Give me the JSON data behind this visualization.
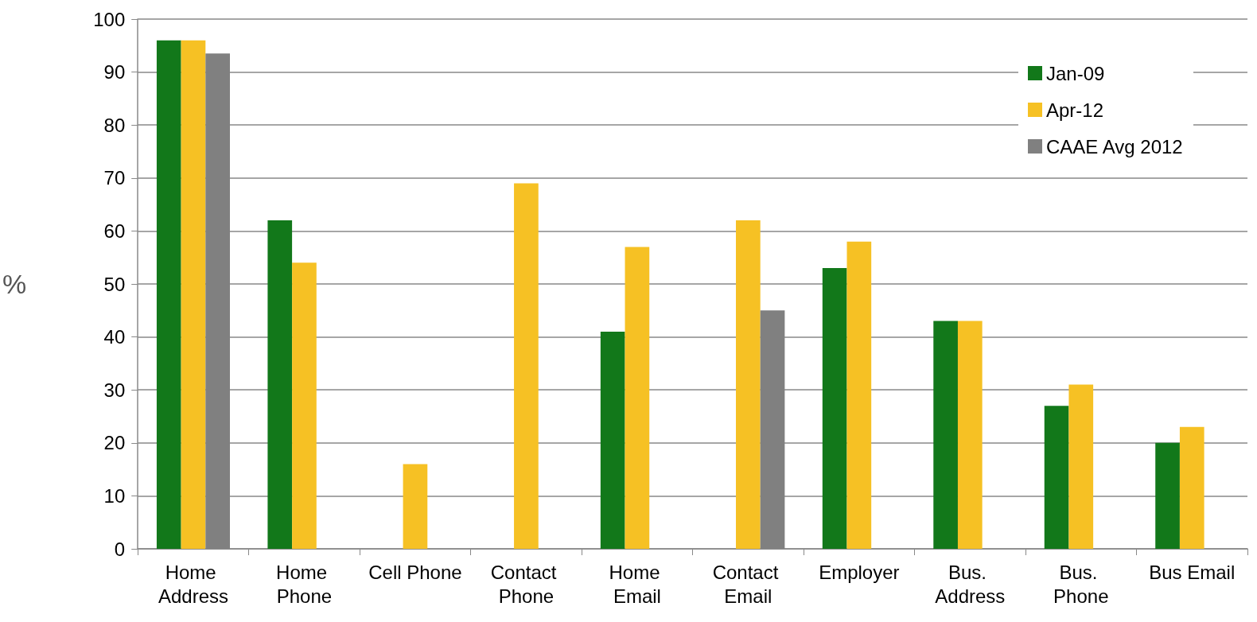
{
  "chart_data": {
    "type": "bar",
    "ylabel": "%",
    "categories": [
      "Home Address",
      "Home Phone",
      "Cell Phone",
      "Contact Phone",
      "Home Email",
      "Contact Email",
      "Employer",
      "Bus. Address",
      "Bus. Phone",
      "Bus Email"
    ],
    "series": [
      {
        "name": "Jan-09",
        "color": "#12781a",
        "values": [
          96,
          62,
          null,
          null,
          41,
          null,
          53,
          43,
          27,
          20
        ]
      },
      {
        "name": "Apr-12",
        "color": "#f6c124",
        "values": [
          96,
          54,
          16,
          69,
          57,
          62,
          58,
          43,
          31,
          23
        ]
      },
      {
        "name": "CAAE Avg 2012",
        "color": "#808080",
        "values": [
          93.5,
          null,
          null,
          null,
          null,
          45,
          null,
          null,
          null,
          null
        ]
      }
    ],
    "ylim": [
      0,
      100
    ],
    "yticks": [
      0,
      10,
      20,
      30,
      40,
      50,
      60,
      70,
      80,
      90,
      100
    ],
    "grid": "y",
    "legend": "top right"
  }
}
